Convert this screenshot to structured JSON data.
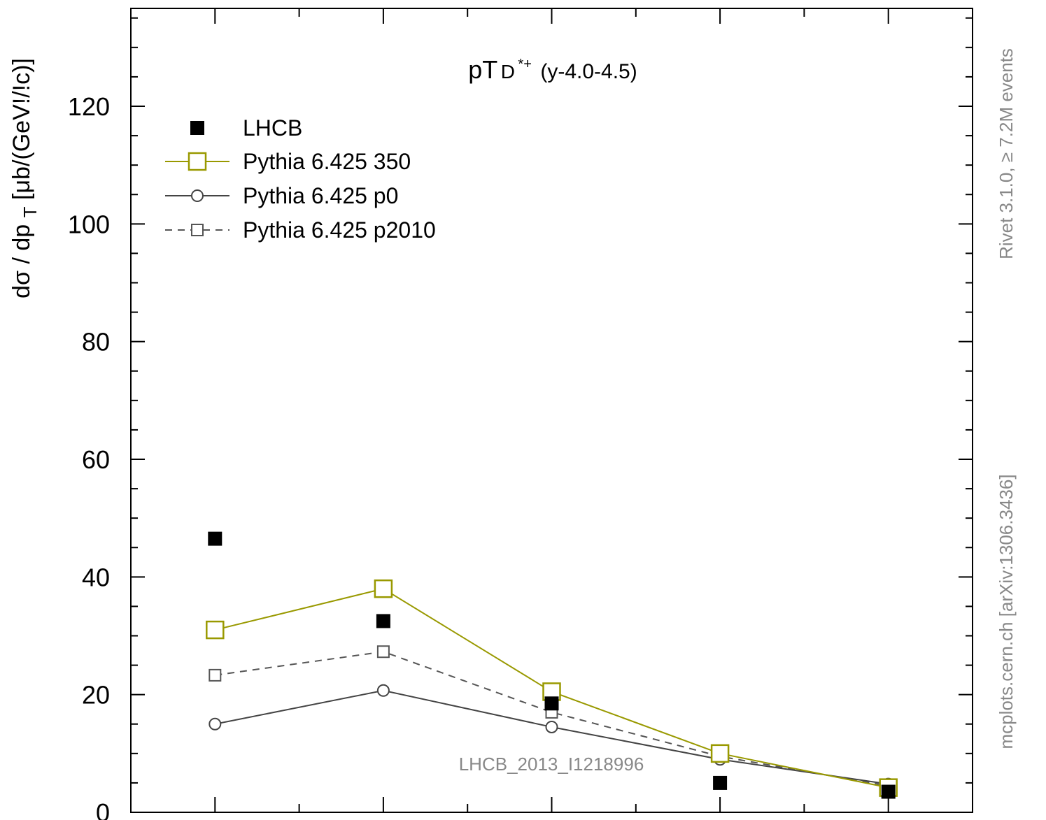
{
  "chart_data": {
    "type": "line",
    "title": "pT(D*+) (y-4.0-4.5)",
    "title_parts": {
      "main": "pT",
      "particle": "D",
      "superscript": "*+",
      "range": "(y-4.0-4.5)"
    },
    "ylabel": "dσ / dp_T [μb/(GeV!/!c)]",
    "ylabel_parts": {
      "pre": "dσ / dp",
      "sub": "T",
      "post": " [μb/(GeV!/!c)]"
    },
    "xlabel": "",
    "ylim": [
      0,
      140
    ],
    "y_ticks": [
      0,
      20,
      40,
      60,
      80,
      100,
      120
    ],
    "y_tick_labels": [
      "0",
      "20",
      "40",
      "60",
      "80",
      "100",
      "120"
    ],
    "x": [
      1,
      2,
      3,
      4,
      5
    ],
    "xlim": [
      0.5,
      5.5
    ],
    "legend_position": "top-left",
    "series": [
      {
        "name": "LHCB",
        "style": "data",
        "marker": "filled-square",
        "color": "#000000",
        "values": [
          46.5,
          32.5,
          18.5,
          5.0,
          3.5
        ]
      },
      {
        "name": "Pythia 6.425 350",
        "style": "solid",
        "marker": "open-square-large",
        "color": "#999900",
        "values": [
          31.0,
          38.0,
          20.5,
          10.0,
          4.2
        ]
      },
      {
        "name": "Pythia 6.425 p0",
        "style": "solid",
        "marker": "open-circle",
        "color": "#444444",
        "values": [
          15.0,
          20.7,
          14.5,
          9.0,
          4.8
        ]
      },
      {
        "name": "Pythia 6.425 p2010",
        "style": "dashed",
        "marker": "open-square-small",
        "color": "#555555",
        "values": [
          23.3,
          27.3,
          17.0,
          9.5,
          4.5
        ]
      }
    ],
    "watermark": "LHCB_2013_I1218996",
    "side_text_top": "Rivet 3.1.0, ≥ 7.2M events",
    "side_text_bottom": "mcplots.cern.ch [arXiv:1306.3436]"
  }
}
